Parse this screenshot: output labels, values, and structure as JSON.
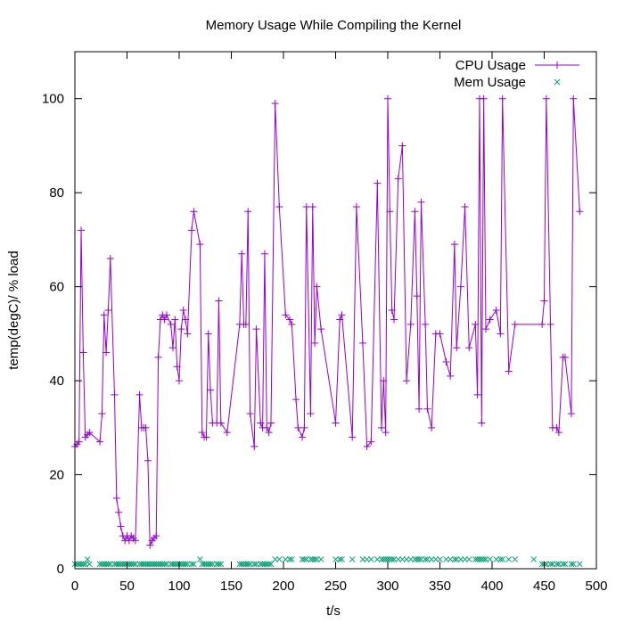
{
  "chart_data": {
    "type": "line",
    "title": "Memory Usage While Compiling the Kernel",
    "xlabel": "t/s",
    "ylabel": "temp(degC)/ % load",
    "xlim": [
      0,
      500
    ],
    "ylim": [
      0,
      110
    ],
    "xticks": [
      "0",
      "50",
      "100",
      "150",
      "200",
      "250",
      "300",
      "350",
      "400",
      "450",
      "500"
    ],
    "yticks": [
      "0",
      "20",
      "40",
      "60",
      "80",
      "100"
    ],
    "grid": false,
    "legend": "top-right",
    "series": [
      {
        "name": "CPU Usage",
        "style": "linespoints",
        "marker": "+",
        "color": "#9400d3",
        "points": [
          [
            0,
            26
          ],
          [
            2,
            26.5
          ],
          [
            4,
            27
          ],
          [
            6,
            72
          ],
          [
            8,
            46
          ],
          [
            10,
            28
          ],
          [
            12,
            28.5
          ],
          [
            14,
            29
          ],
          [
            24,
            27
          ],
          [
            26,
            33
          ],
          [
            28,
            54
          ],
          [
            30,
            46
          ],
          [
            32,
            55
          ],
          [
            34,
            66
          ],
          [
            38,
            37
          ],
          [
            40,
            15
          ],
          [
            42,
            12
          ],
          [
            44,
            9
          ],
          [
            46,
            7
          ],
          [
            48,
            6
          ],
          [
            50,
            7
          ],
          [
            52,
            6
          ],
          [
            54,
            7
          ],
          [
            56,
            6.5
          ],
          [
            58,
            6
          ],
          [
            62,
            37
          ],
          [
            64,
            30
          ],
          [
            66,
            30
          ],
          [
            68,
            30
          ],
          [
            70,
            23
          ],
          [
            72,
            5
          ],
          [
            74,
            6
          ],
          [
            76,
            6.5
          ],
          [
            78,
            7
          ],
          [
            80,
            45
          ],
          [
            82,
            53
          ],
          [
            84,
            54
          ],
          [
            86,
            53
          ],
          [
            88,
            54
          ],
          [
            92,
            52
          ],
          [
            94,
            47
          ],
          [
            96,
            53
          ],
          [
            98,
            43
          ],
          [
            100,
            40
          ],
          [
            102,
            51
          ],
          [
            104,
            55
          ],
          [
            106,
            53
          ],
          [
            108,
            50
          ],
          [
            112,
            72
          ],
          [
            114,
            76
          ],
          [
            120,
            69
          ],
          [
            122,
            29
          ],
          [
            124,
            28
          ],
          [
            126,
            28
          ],
          [
            128,
            50
          ],
          [
            130,
            38
          ],
          [
            132,
            31
          ],
          [
            136,
            31
          ],
          [
            138,
            57
          ],
          [
            140,
            31
          ],
          [
            146,
            29
          ],
          [
            158,
            52
          ],
          [
            160,
            67
          ],
          [
            162,
            52
          ],
          [
            164,
            52
          ],
          [
            166,
            76
          ],
          [
            168,
            33
          ],
          [
            172,
            26
          ],
          [
            174,
            51
          ],
          [
            178,
            31
          ],
          [
            180,
            30
          ],
          [
            182,
            67
          ],
          [
            184,
            30
          ],
          [
            186,
            29
          ],
          [
            188,
            31
          ],
          [
            192,
            99
          ],
          [
            196,
            77
          ],
          [
            202,
            54
          ],
          [
            206,
            53
          ],
          [
            208,
            52
          ],
          [
            212,
            36
          ],
          [
            214,
            30
          ],
          [
            218,
            28
          ],
          [
            220,
            30
          ],
          [
            222,
            77
          ],
          [
            226,
            33
          ],
          [
            228,
            77
          ],
          [
            230,
            48
          ],
          [
            232,
            60
          ],
          [
            236,
            51
          ],
          [
            250,
            31
          ],
          [
            254,
            53
          ],
          [
            256,
            54
          ],
          [
            266,
            28
          ],
          [
            270,
            77
          ],
          [
            276,
            48
          ],
          [
            280,
            26
          ],
          [
            284,
            27
          ],
          [
            290,
            82
          ],
          [
            294,
            30
          ],
          [
            296,
            40
          ],
          [
            298,
            29
          ],
          [
            300,
            100
          ],
          [
            302,
            76
          ],
          [
            304,
            55
          ],
          [
            306,
            53
          ],
          [
            310,
            83
          ],
          [
            314,
            90
          ],
          [
            318,
            40
          ],
          [
            322,
            52
          ],
          [
            326,
            76
          ],
          [
            328,
            58
          ],
          [
            330,
            34
          ],
          [
            332,
            78
          ],
          [
            336,
            52
          ],
          [
            338,
            34
          ],
          [
            342,
            30
          ],
          [
            346,
            50
          ],
          [
            350,
            50
          ],
          [
            356,
            44
          ],
          [
            360,
            41
          ],
          [
            364,
            69
          ],
          [
            366,
            47
          ],
          [
            370,
            60
          ],
          [
            374,
            77
          ],
          [
            378,
            47
          ],
          [
            384,
            52
          ],
          [
            386,
            37
          ],
          [
            388,
            100
          ],
          [
            390,
            31
          ],
          [
            392,
            100
          ],
          [
            394,
            51
          ],
          [
            398,
            53
          ],
          [
            404,
            55
          ],
          [
            408,
            50
          ],
          [
            410,
            100
          ],
          [
            416,
            42
          ],
          [
            422,
            52
          ],
          [
            448,
            52
          ],
          [
            450,
            57
          ],
          [
            452,
            100
          ],
          [
            456,
            52
          ],
          [
            458,
            30
          ],
          [
            462,
            30
          ],
          [
            464,
            29
          ],
          [
            468,
            45
          ],
          [
            470,
            45
          ],
          [
            476,
            33
          ],
          [
            478,
            100
          ],
          [
            484,
            76
          ]
        ]
      },
      {
        "name": "Mem Usage",
        "style": "points",
        "marker": "x",
        "color": "#009e73",
        "points": [
          [
            0,
            1
          ],
          [
            2,
            1
          ],
          [
            4,
            1
          ],
          [
            6,
            1
          ],
          [
            8,
            1
          ],
          [
            10,
            1
          ],
          [
            12,
            2
          ],
          [
            14,
            1
          ],
          [
            24,
            1
          ],
          [
            26,
            1
          ],
          [
            28,
            1
          ],
          [
            30,
            1
          ],
          [
            32,
            1
          ],
          [
            34,
            1
          ],
          [
            38,
            1
          ],
          [
            40,
            1
          ],
          [
            42,
            1
          ],
          [
            44,
            1
          ],
          [
            46,
            1
          ],
          [
            48,
            1
          ],
          [
            50,
            1
          ],
          [
            52,
            1
          ],
          [
            54,
            1
          ],
          [
            56,
            1
          ],
          [
            58,
            1
          ],
          [
            62,
            1
          ],
          [
            64,
            1
          ],
          [
            66,
            1
          ],
          [
            68,
            1
          ],
          [
            70,
            1
          ],
          [
            72,
            1
          ],
          [
            74,
            1
          ],
          [
            76,
            1
          ],
          [
            78,
            1
          ],
          [
            80,
            1
          ],
          [
            82,
            1
          ],
          [
            84,
            1
          ],
          [
            86,
            1
          ],
          [
            88,
            1
          ],
          [
            92,
            1
          ],
          [
            94,
            1
          ],
          [
            96,
            1
          ],
          [
            98,
            1
          ],
          [
            100,
            1
          ],
          [
            102,
            1
          ],
          [
            104,
            1
          ],
          [
            106,
            1
          ],
          [
            108,
            1
          ],
          [
            112,
            1
          ],
          [
            114,
            1
          ],
          [
            120,
            2
          ],
          [
            122,
            1
          ],
          [
            124,
            1
          ],
          [
            126,
            1
          ],
          [
            128,
            1
          ],
          [
            130,
            1
          ],
          [
            132,
            1
          ],
          [
            136,
            1
          ],
          [
            138,
            1
          ],
          [
            140,
            1
          ],
          [
            158,
            1
          ],
          [
            160,
            1
          ],
          [
            162,
            1
          ],
          [
            164,
            1
          ],
          [
            166,
            1
          ],
          [
            168,
            1
          ],
          [
            172,
            1
          ],
          [
            174,
            1
          ],
          [
            178,
            1
          ],
          [
            180,
            1
          ],
          [
            182,
            1
          ],
          [
            184,
            1
          ],
          [
            186,
            1
          ],
          [
            188,
            1
          ],
          [
            192,
            2
          ],
          [
            196,
            2
          ],
          [
            202,
            2
          ],
          [
            206,
            2
          ],
          [
            208,
            2
          ],
          [
            218,
            2
          ],
          [
            220,
            2
          ],
          [
            222,
            2
          ],
          [
            226,
            2
          ],
          [
            228,
            2
          ],
          [
            230,
            2
          ],
          [
            232,
            2
          ],
          [
            236,
            2
          ],
          [
            250,
            2
          ],
          [
            254,
            2
          ],
          [
            256,
            2
          ],
          [
            266,
            2
          ],
          [
            276,
            2
          ],
          [
            280,
            2
          ],
          [
            284,
            2
          ],
          [
            290,
            2
          ],
          [
            294,
            2
          ],
          [
            296,
            2
          ],
          [
            298,
            2
          ],
          [
            300,
            2
          ],
          [
            302,
            2
          ],
          [
            304,
            2
          ],
          [
            306,
            2
          ],
          [
            310,
            2
          ],
          [
            314,
            2
          ],
          [
            318,
            2
          ],
          [
            322,
            2
          ],
          [
            326,
            2
          ],
          [
            328,
            2
          ],
          [
            330,
            2
          ],
          [
            332,
            2
          ],
          [
            336,
            2
          ],
          [
            338,
            2
          ],
          [
            342,
            2
          ],
          [
            346,
            2
          ],
          [
            350,
            2
          ],
          [
            356,
            2
          ],
          [
            360,
            2
          ],
          [
            364,
            2
          ],
          [
            366,
            2
          ],
          [
            370,
            2
          ],
          [
            374,
            2
          ],
          [
            378,
            2
          ],
          [
            384,
            2
          ],
          [
            386,
            2
          ],
          [
            388,
            2
          ],
          [
            390,
            2
          ],
          [
            392,
            2
          ],
          [
            394,
            2
          ],
          [
            398,
            2
          ],
          [
            404,
            2
          ],
          [
            408,
            2
          ],
          [
            410,
            2
          ],
          [
            416,
            2
          ],
          [
            422,
            2
          ],
          [
            440,
            2
          ],
          [
            448,
            1
          ],
          [
            450,
            1
          ],
          [
            452,
            1
          ],
          [
            456,
            1
          ],
          [
            458,
            1
          ],
          [
            462,
            1
          ],
          [
            464,
            1
          ],
          [
            468,
            1
          ],
          [
            470,
            1
          ],
          [
            476,
            1
          ],
          [
            478,
            1
          ],
          [
            484,
            1
          ]
        ]
      }
    ]
  }
}
